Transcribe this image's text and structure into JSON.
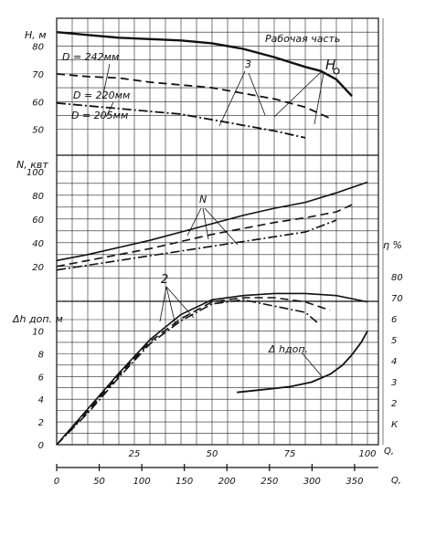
{
  "chart_data": {
    "type": "line",
    "axes": {
      "x_primary": {
        "label": "Q,",
        "ticks": [
          "25",
          "50",
          "75",
          "100"
        ],
        "range": [
          0,
          105
        ]
      },
      "x_secondary": {
        "label": "Q,",
        "ticks": [
          "0",
          "50",
          "100",
          "150",
          "200",
          "250",
          "300",
          "350"
        ],
        "range": [
          0,
          378
        ]
      },
      "panel_head": {
        "ylabel": "H, м",
        "ticks": [
          "50",
          "60",
          "70",
          "80"
        ],
        "ylim": [
          44,
          90
        ],
        "region_label": "Рабочая часть"
      },
      "panel_power": {
        "ylabel": "N, квт",
        "ticks": [
          "20",
          "40",
          "60",
          "80",
          "100"
        ],
        "ylim": [
          6,
          106
        ]
      },
      "panel_npsh": {
        "ylabel": "Δh доп. м",
        "ticks": [
          "0",
          "2",
          "4",
          "6",
          "8",
          "10"
        ],
        "ylim": [
          0,
          11
        ],
        "right_label": "η %",
        "right_ticks": [
          "К",
          "2",
          "3",
          "4",
          "5",
          "6",
          "70",
          "80"
        ]
      }
    },
    "head_series": [
      {
        "name": "D = 242мм",
        "x": [
          0,
          10,
          20,
          30,
          40,
          50,
          60,
          70,
          80,
          85,
          90,
          95
        ],
        "y": [
          85,
          84,
          83,
          82.5,
          82,
          81,
          79,
          76,
          72.5,
          71,
          68,
          62
        ]
      },
      {
        "name": "D = 220мм",
        "x": [
          0,
          10,
          20,
          30,
          40,
          50,
          60,
          70,
          80,
          88
        ],
        "y": [
          70,
          69,
          68.5,
          67,
          66,
          65,
          63,
          61,
          58,
          54
        ]
      },
      {
        "name": "D = 205мм",
        "x": [
          0,
          10,
          20,
          30,
          40,
          50,
          60,
          70,
          80
        ],
        "y": [
          59.5,
          58.5,
          57.5,
          56.5,
          55.5,
          53.5,
          51.5,
          49.5,
          47
        ]
      }
    ],
    "head_label": "H",
    "power_series": [
      {
        "x": [
          0,
          10,
          20,
          30,
          40,
          50,
          60,
          70,
          80,
          90,
          100
        ],
        "y": [
          25,
          30,
          36,
          42,
          49,
          56,
          63,
          69,
          74,
          82,
          91
        ]
      },
      {
        "x": [
          0,
          10,
          20,
          30,
          40,
          50,
          60,
          70,
          80,
          90,
          95
        ],
        "y": [
          20,
          25,
          30,
          35,
          41,
          47,
          52,
          57,
          61,
          66,
          72
        ]
      },
      {
        "x": [
          0,
          10,
          20,
          30,
          40,
          50,
          60,
          70,
          80,
          90
        ],
        "y": [
          17,
          21,
          25,
          29,
          33,
          37,
          41,
          45,
          49,
          59
        ]
      }
    ],
    "power_label": "N",
    "efficiency_series": [
      {
        "x": [
          0,
          10,
          20,
          30,
          40,
          50,
          60,
          70,
          80,
          90,
          100
        ],
        "y": [
          0,
          17,
          34,
          50,
          62,
          69,
          71,
          72,
          72,
          71,
          68
        ]
      },
      {
        "x": [
          0,
          10,
          20,
          30,
          40,
          50,
          60,
          70,
          80,
          88
        ],
        "y": [
          0,
          16,
          33,
          49,
          60,
          68,
          70,
          70,
          68,
          64
        ]
      },
      {
        "x": [
          0,
          10,
          20,
          30,
          40,
          50,
          60,
          70,
          80,
          84
        ],
        "y": [
          0,
          15,
          32,
          48,
          59,
          67,
          69,
          66,
          63,
          58
        ]
      }
    ],
    "efficiency_label": "2",
    "npsh_series": [
      {
        "name": "Δ hдоп.",
        "x": [
          58,
          65,
          75,
          82,
          88,
          92,
          95,
          98,
          100
        ],
        "y": [
          4.6,
          4.8,
          5.1,
          5.5,
          6.2,
          7.0,
          7.9,
          9.0,
          10.0
        ]
      }
    ],
    "curve_label_3": "3"
  }
}
